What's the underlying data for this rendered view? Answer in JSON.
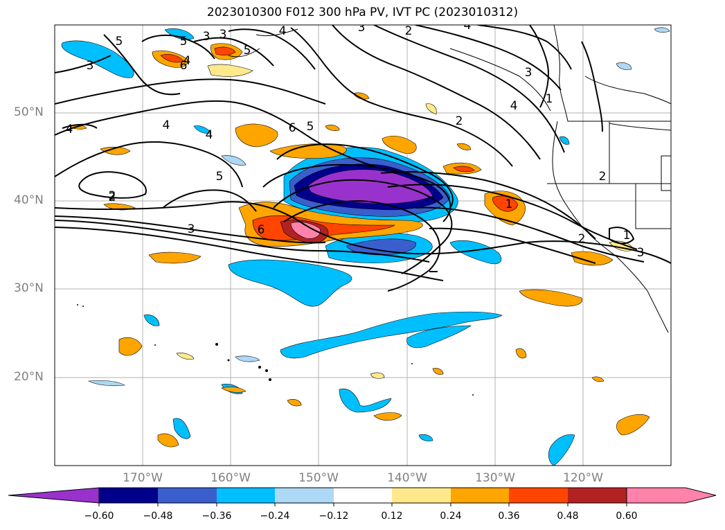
{
  "title": "2023010300 F012 300 hPa PV, IVT PC (2023010312)",
  "lat_labels": [
    "50°N",
    "40°N",
    "30°N",
    "20°N"
  ],
  "lon_labels": [
    "170°W",
    "160°W",
    "150°W",
    "140°W",
    "130°W",
    "120°W"
  ],
  "colorbar": {
    "labels": [
      "−0.60",
      "−0.48",
      "−0.36",
      "−0.24",
      "−0.12",
      "0.12",
      "0.24",
      "0.36",
      "0.48",
      "0.60"
    ],
    "colors": [
      "#9932cc",
      "#00008b",
      "#3a5fcd",
      "#00bfff",
      "#add8f6",
      "#ffffff",
      "#ffe98a",
      "#ffa500",
      "#ff4500",
      "#b22222",
      "#ff82ab"
    ]
  },
  "contour_labels": [
    "5",
    "5",
    "3",
    "4",
    "3",
    "4",
    "4",
    "5",
    "6",
    "5",
    "4",
    "4",
    "2",
    "5",
    "2",
    "3",
    "6",
    "3",
    "2",
    "1",
    "2",
    "2",
    "3",
    "1",
    "4",
    "3",
    "6",
    "2",
    "3",
    "4",
    "1"
  ]
}
